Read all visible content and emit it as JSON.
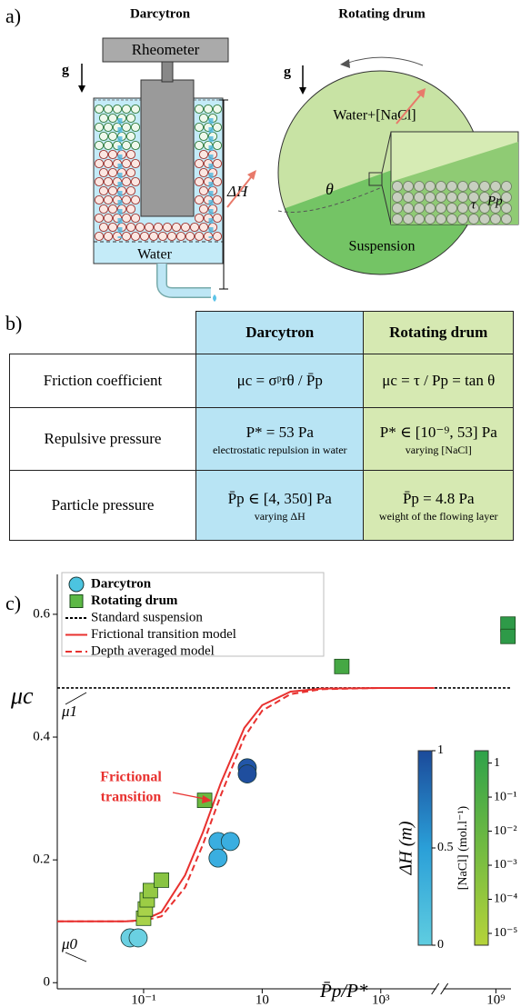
{
  "panel_labels": [
    "a)",
    "b)",
    "c)"
  ],
  "diagram": {
    "darcytron": {
      "title": "Darcytron",
      "rheometer": "Rheometer",
      "gravity": "g",
      "water": "Water",
      "height": "ΔH"
    },
    "drum": {
      "title": "Rotating drum",
      "gravity": "g",
      "liquid": "Water+[NaCl]",
      "angle": "θ",
      "suspension": "Suspension",
      "stress": "τ",
      "pressure": "Pp"
    }
  },
  "table": {
    "header": [
      "Darcytron",
      "Rotating drum"
    ],
    "rows": [
      {
        "label": "Friction coefficient",
        "cells": [
          {
            "main": "μc = σᵖrθ / P̄p"
          },
          {
            "main": "μc = τ / Pp = tan θ"
          }
        ]
      },
      {
        "label": "Repulsive pressure",
        "cells": [
          {
            "main": "P* = 53 Pa",
            "note": "electrostatic repulsion in water"
          },
          {
            "main": "P* ∈ [10⁻⁹, 53] Pa",
            "note": "varying [NaCl]"
          }
        ]
      },
      {
        "label": "Particle pressure",
        "cells": [
          {
            "main": "P̄p ∈ [4, 350] Pa",
            "note": "varying ΔH"
          },
          {
            "main": "P̄p = 4.8 Pa",
            "note": "weight of the flowing layer"
          }
        ]
      }
    ]
  },
  "chart_data": {
    "type": "scatter",
    "xlabel": "P̄p/P*",
    "xscale": "log",
    "xlim": [
      0.0035,
      1800000000
    ],
    "axis_break": [
      8000,
      140000000
    ],
    "ylim": [
      -0.01,
      0.665
    ],
    "xticks": [
      {
        "value": 0.1,
        "label": "10⁻¹"
      },
      10,
      {
        "value": 1000,
        "label": "10³"
      },
      {
        "value": 1000000000,
        "label": "10⁹"
      }
    ],
    "yticks": [
      0,
      0.2,
      0.4,
      0.6
    ],
    "legend": "upper left",
    "annotations": [
      "μc",
      "μ1",
      "μ0",
      "Frictional",
      "transition"
    ],
    "series": [
      {
        "name": "Darcytron",
        "type": "scatter",
        "marker": "circle",
        "color": "#4cc4e0",
        "x": [
          0.059,
          0.081,
          1.8,
          2.9,
          1.8,
          5.6,
          5.6
        ],
        "y": [
          0.073,
          0.073,
          0.23,
          0.23,
          0.203,
          0.35,
          0.34
        ],
        "colors": [
          "#6ad0e2",
          "#6ad0e2",
          "#3aaee0",
          "#3aaee0",
          "#3aaee0",
          "#2256a8",
          "#1f4e9e"
        ]
      },
      {
        "name": "Rotating drum",
        "type": "scatter",
        "marker": "square",
        "color": "#5cb845",
        "x": [
          0.1,
          0.107,
          0.115,
          0.13,
          0.2,
          1.07,
          220,
          1600000000,
          1600000000
        ],
        "y": [
          0.105,
          0.12,
          0.135,
          0.15,
          0.167,
          0.297,
          0.515,
          0.584,
          0.564
        ],
        "colors": [
          "#a8d24a",
          "#a8d24a",
          "#9ccd45",
          "#94c944",
          "#88c442",
          "#6bb83f",
          "#46a844",
          "#2e9a48",
          "#2e9a48"
        ]
      },
      {
        "name": "Standard suspension",
        "type": "line",
        "color": "#000000",
        "dash": "dotted",
        "x": [
          0.0035,
          1800000000
        ],
        "y": [
          0.48,
          0.48
        ]
      },
      {
        "name": "Frictional transition model",
        "type": "line",
        "color": "#e8312f",
        "dash": "solid",
        "x": [
          0.0035,
          0.05,
          0.1,
          0.2,
          0.5,
          1,
          2,
          5,
          10,
          30,
          100,
          1000,
          8000
        ],
        "y": [
          0.1,
          0.1,
          0.102,
          0.115,
          0.175,
          0.245,
          0.325,
          0.415,
          0.452,
          0.474,
          0.479,
          0.48,
          0.48
        ]
      },
      {
        "name": "Depth averaged model",
        "type": "line",
        "color": "#e8312f",
        "dash": "dashed",
        "x": [
          0.0035,
          0.05,
          0.1,
          0.2,
          0.5,
          1,
          2,
          5,
          10,
          30,
          100,
          1000,
          8000
        ],
        "y": [
          0.1,
          0.1,
          0.101,
          0.108,
          0.155,
          0.225,
          0.305,
          0.4,
          0.443,
          0.47,
          0.478,
          0.48,
          0.48
        ]
      }
    ],
    "colorbars": [
      {
        "label": "ΔH (m)",
        "scale": "linear",
        "lim": [
          0,
          1
        ],
        "ticks": [
          0,
          0.5,
          1
        ],
        "colors": [
          "#5fcde0",
          "#2a9fd8",
          "#1b4a9a"
        ]
      },
      {
        "label": "[NaCl] (mol.l⁻¹)",
        "scale": "log",
        "lim": [
          4.5e-06,
          2.3
        ],
        "ticks": [
          {
            "value": 1e-05,
            "label": "10⁻⁵"
          },
          {
            "value": 0.0001,
            "label": "10⁻⁴"
          },
          {
            "value": 0.001,
            "label": "10⁻³"
          },
          {
            "value": 0.01,
            "label": "10⁻²"
          },
          {
            "value": 0.1,
            "label": "10⁻¹"
          },
          1
        ],
        "colors": [
          "#b5d33a",
          "#2fa24a"
        ]
      }
    ]
  }
}
